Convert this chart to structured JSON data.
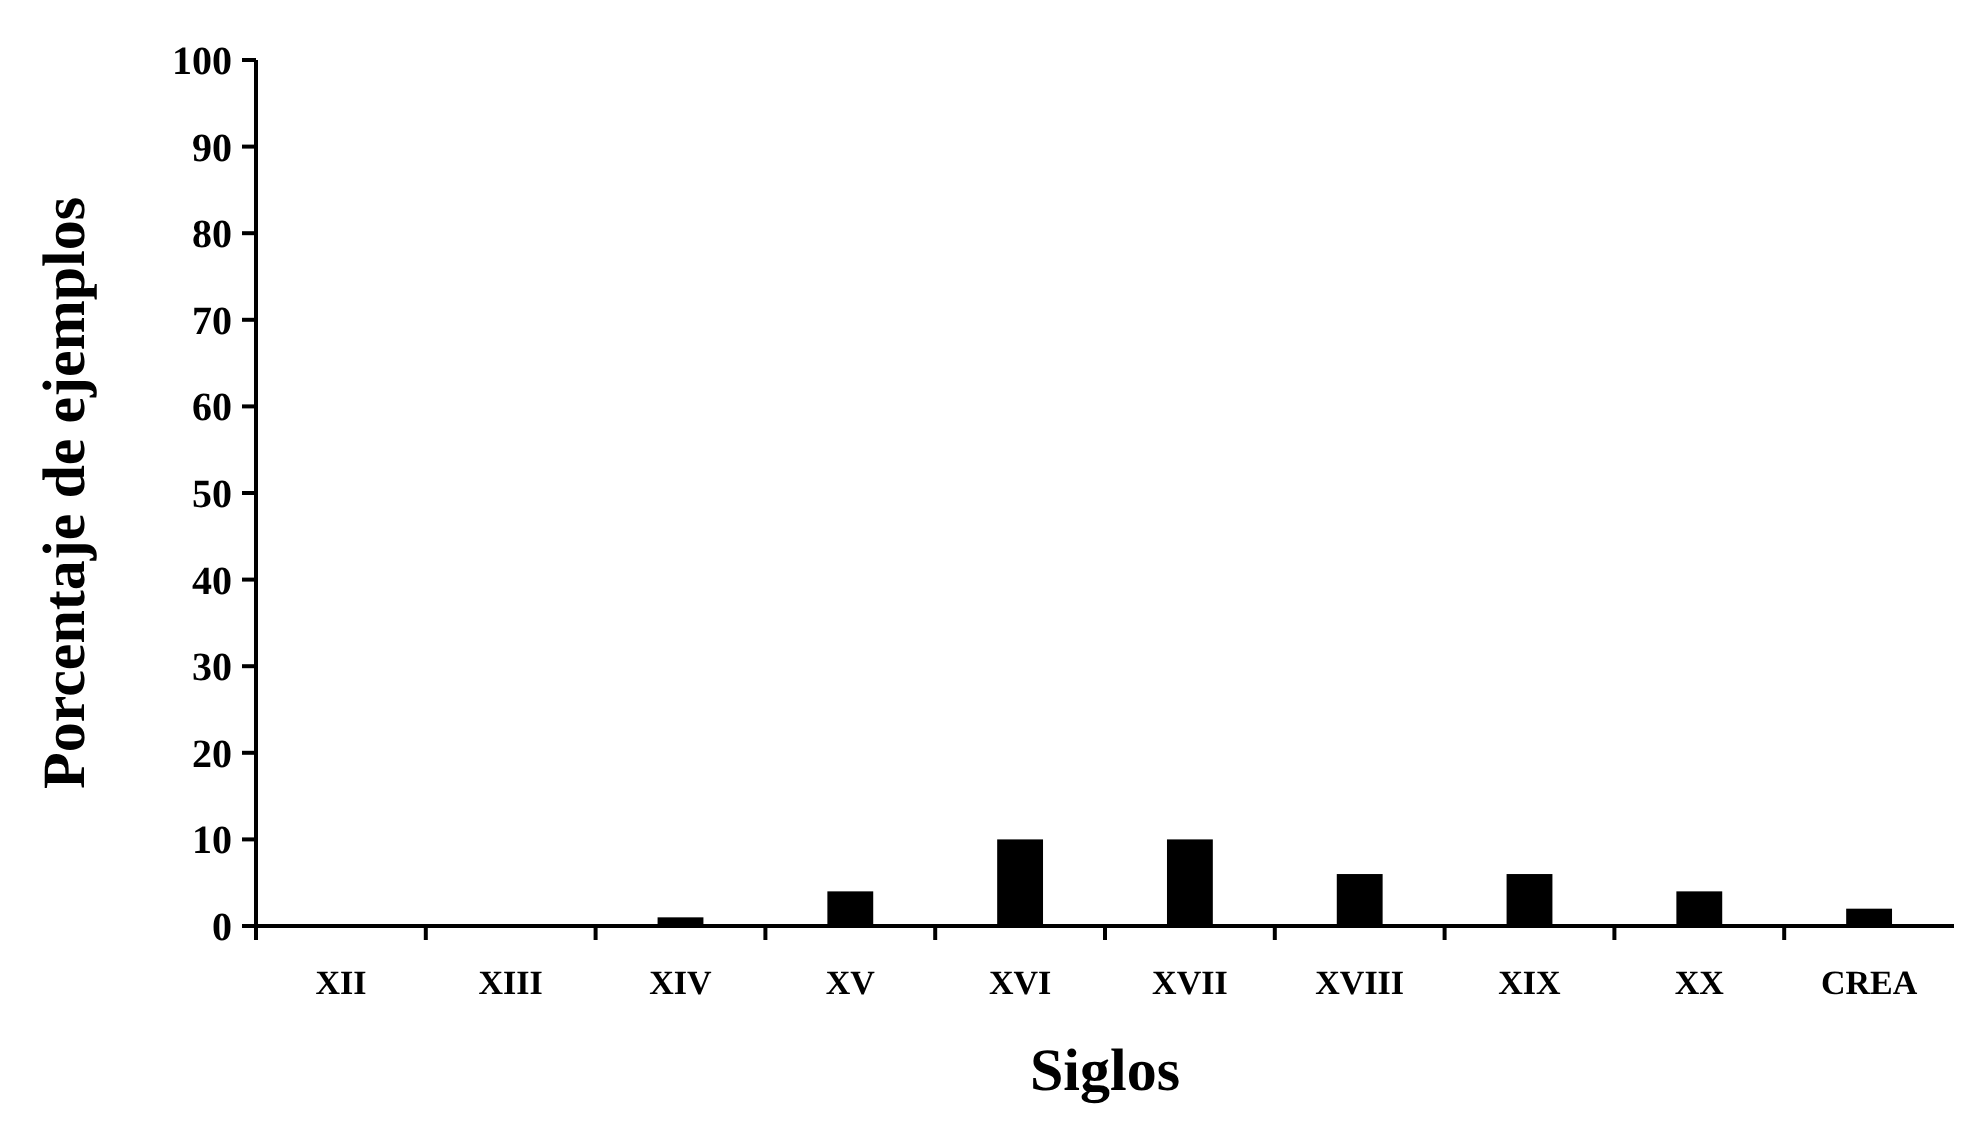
{
  "chart_data": {
    "type": "bar",
    "xlabel": "Siglos",
    "ylabel": "Porcentaje de ejemplos",
    "categories": [
      "XII",
      "XIII",
      "XIV",
      "XV",
      "XVI",
      "XVII",
      "XVIII",
      "XIX",
      "XX",
      "CREA"
    ],
    "values": [
      0,
      0,
      1,
      4,
      10,
      10,
      6,
      6,
      4,
      2
    ],
    "color": "#000000",
    "ylim": [
      0,
      100
    ],
    "yticks": [
      0,
      10,
      20,
      30,
      40,
      50,
      60,
      70,
      80,
      90,
      100
    ],
    "grid": false
  }
}
